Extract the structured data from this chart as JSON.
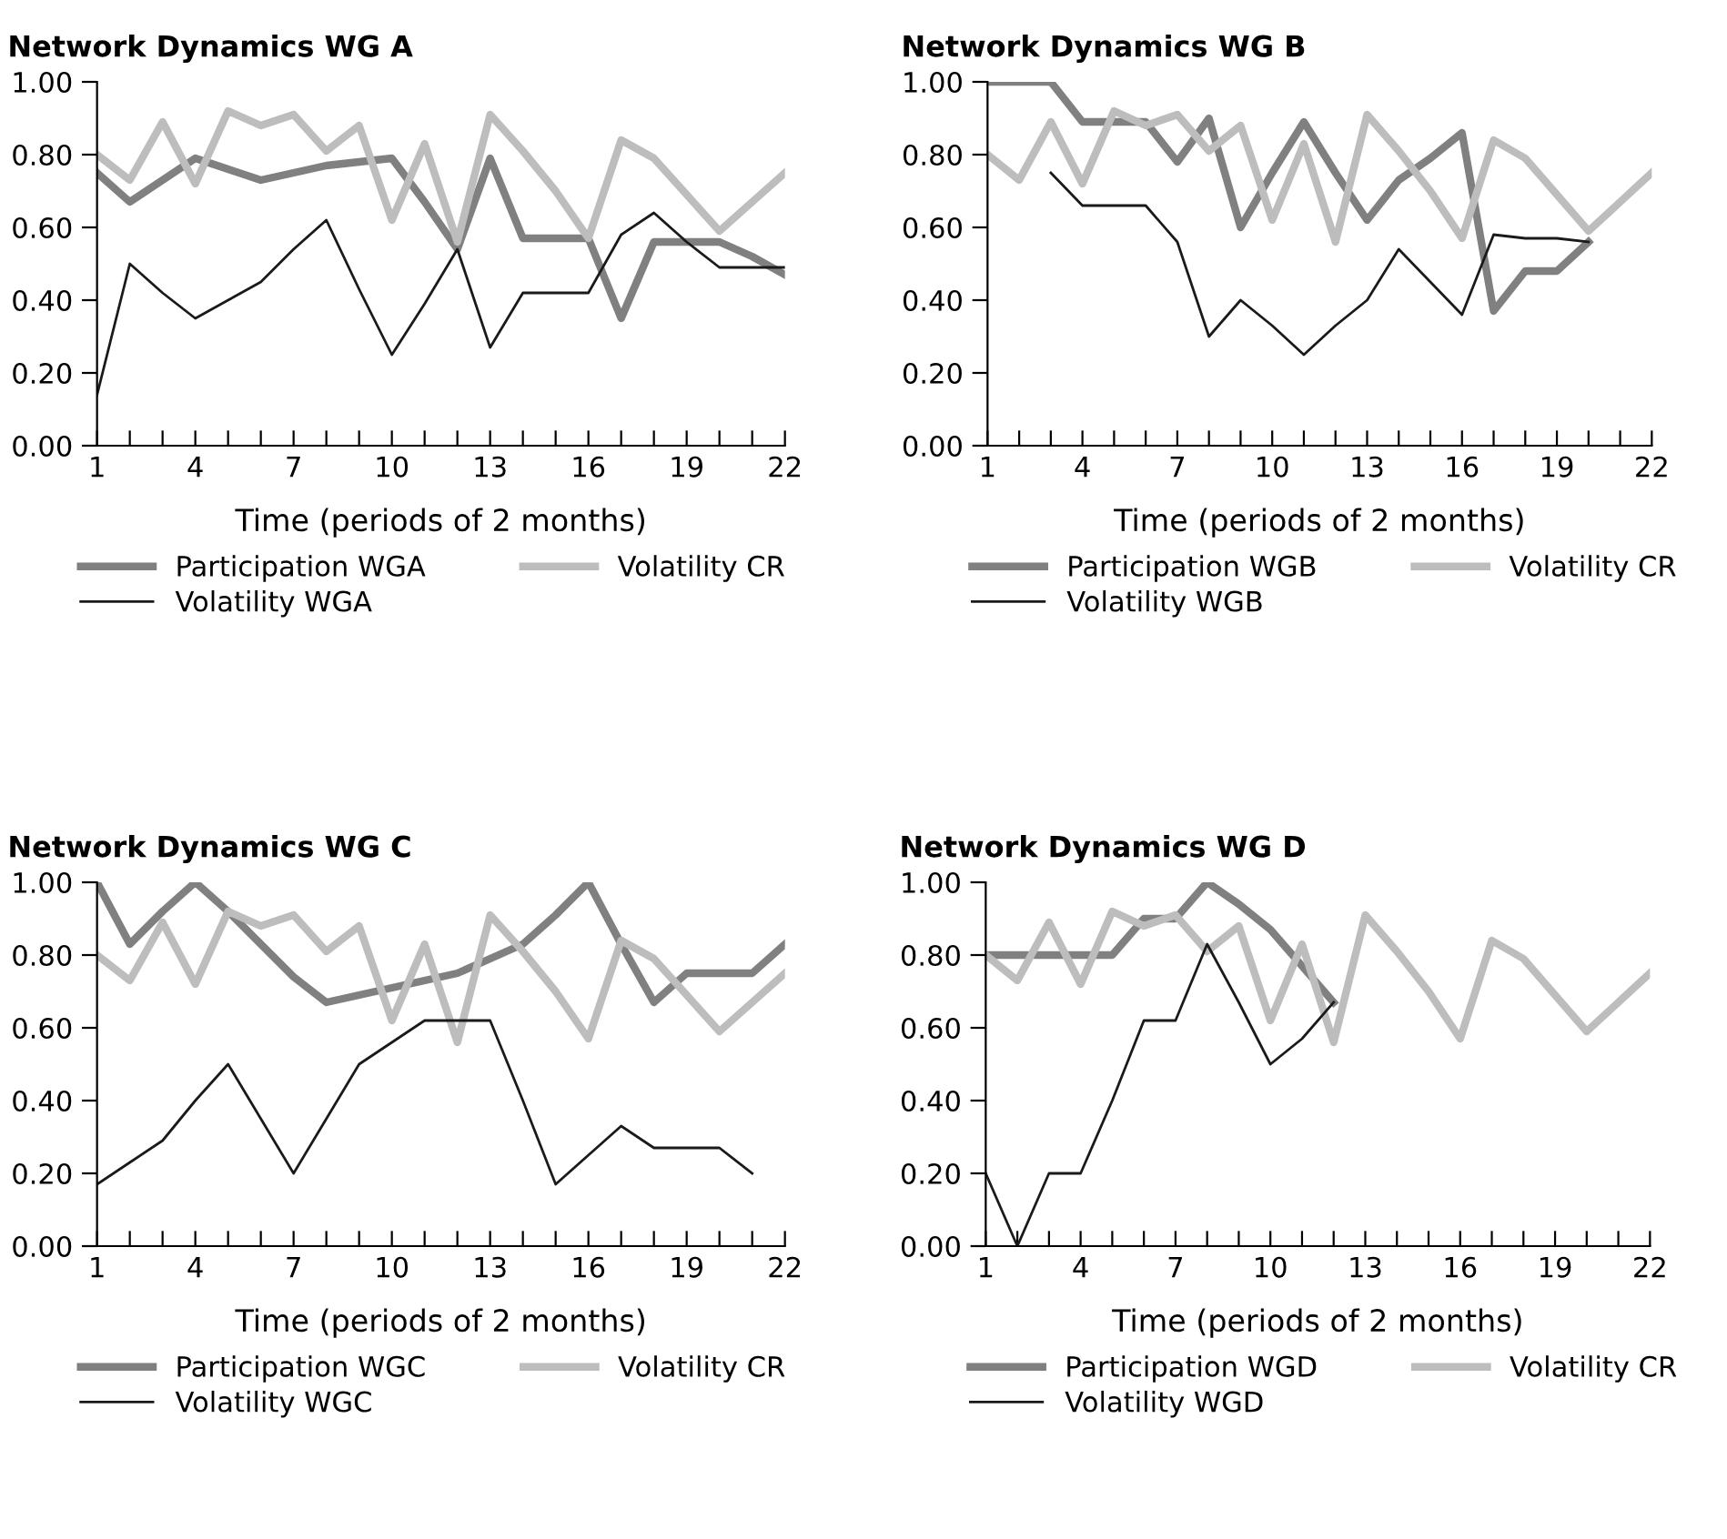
{
  "chart_data": [
    {
      "type": "line",
      "title": "Network Dynamics WG A",
      "xlabel": "Time (periods of 2 months)",
      "legend": "bottom",
      "grid": false,
      "x": [
        1,
        2,
        3,
        4,
        5,
        6,
        7,
        8,
        9,
        10,
        11,
        12,
        13,
        14,
        15,
        16,
        17,
        18,
        19,
        20,
        21,
        22
      ],
      "xlim": [
        1,
        22
      ],
      "xticks": [
        1,
        {
          "value": 2,
          "label": null
        },
        {
          "value": 3,
          "label": null
        },
        4,
        {
          "value": 5,
          "label": null
        },
        {
          "value": 6,
          "label": null
        },
        7,
        {
          "value": 8,
          "label": null
        },
        {
          "value": 9,
          "label": null
        },
        10,
        {
          "value": 11,
          "label": null
        },
        {
          "value": 12,
          "label": null
        },
        13,
        {
          "value": 14,
          "label": null
        },
        {
          "value": 15,
          "label": null
        },
        16,
        {
          "value": 17,
          "label": null
        },
        {
          "value": 18,
          "label": null
        },
        19,
        {
          "value": 20,
          "label": null
        },
        {
          "value": 21,
          "label": null
        },
        22
      ],
      "ylim": [
        0,
        1
      ],
      "yticks": [
        {
          "value": 0,
          "label": "0.00"
        },
        {
          "value": 0.2,
          "label": "0.20"
        },
        {
          "value": 0.4,
          "label": "0.40"
        },
        {
          "value": 0.6,
          "label": "0.60"
        },
        {
          "value": 0.8,
          "label": "0.80"
        },
        {
          "value": 1,
          "label": "1.00"
        }
      ],
      "series": [
        {
          "name": "Participation WGA",
          "color": "#808080",
          "values": [
            0.75,
            0.67,
            0.73,
            0.79,
            0.76,
            0.73,
            0.75,
            0.77,
            0.78,
            0.79,
            0.67,
            0.54,
            0.79,
            0.57,
            0.57,
            0.57,
            0.35,
            0.56,
            0.56,
            0.56,
            0.52,
            0.47
          ]
        },
        {
          "name": "Volatility CR",
          "color": "#bdbdbd",
          "values": [
            0.8,
            0.73,
            0.89,
            0.72,
            0.92,
            0.88,
            0.91,
            0.81,
            0.88,
            0.62,
            0.83,
            0.56,
            0.91,
            0.81,
            0.7,
            0.57,
            0.84,
            0.79,
            0.69,
            0.59,
            0.67,
            0.75
          ]
        },
        {
          "name": "Volatility WGA",
          "color": "#1a1a1a",
          "values": [
            0.14,
            0.5,
            0.42,
            0.35,
            0.4,
            0.45,
            0.54,
            0.62,
            0.43,
            0.25,
            0.39,
            0.54,
            0.27,
            0.42,
            0.42,
            0.42,
            0.58,
            0.64,
            0.56,
            0.49,
            0.49,
            0.49
          ]
        }
      ]
    },
    {
      "type": "line",
      "title": "Network Dynamics WG B",
      "xlabel": "Time (periods of 2 months)",
      "legend": "bottom",
      "grid": false,
      "x": [
        1,
        2,
        3,
        4,
        5,
        6,
        7,
        8,
        9,
        10,
        11,
        12,
        13,
        14,
        15,
        16,
        17,
        18,
        19,
        20,
        21,
        22
      ],
      "xlim": [
        1,
        22
      ],
      "xticks": [
        1,
        {
          "value": 2,
          "label": null
        },
        {
          "value": 3,
          "label": null
        },
        4,
        {
          "value": 5,
          "label": null
        },
        {
          "value": 6,
          "label": null
        },
        7,
        {
          "value": 8,
          "label": null
        },
        {
          "value": 9,
          "label": null
        },
        10,
        {
          "value": 11,
          "label": null
        },
        {
          "value": 12,
          "label": null
        },
        13,
        {
          "value": 14,
          "label": null
        },
        {
          "value": 15,
          "label": null
        },
        16,
        {
          "value": 17,
          "label": null
        },
        {
          "value": 18,
          "label": null
        },
        19,
        {
          "value": 20,
          "label": null
        },
        {
          "value": 21,
          "label": null
        },
        22
      ],
      "ylim": [
        0,
        1
      ],
      "yticks": [
        {
          "value": 0,
          "label": "0.00"
        },
        {
          "value": 0.2,
          "label": "0.20"
        },
        {
          "value": 0.4,
          "label": "0.40"
        },
        {
          "value": 0.6,
          "label": "0.60"
        },
        {
          "value": 0.8,
          "label": "0.80"
        },
        {
          "value": 1,
          "label": "1.00"
        }
      ],
      "series": [
        {
          "name": "Participation WGB",
          "color": "#808080",
          "values": [
            1.0,
            1.0,
            1.0,
            0.89,
            0.89,
            0.89,
            0.78,
            0.9,
            0.6,
            0.75,
            0.89,
            0.75,
            0.62,
            0.73,
            0.79,
            0.86,
            0.37,
            0.48,
            0.48,
            0.56,
            null,
            null
          ]
        },
        {
          "name": "Volatility CR",
          "color": "#bdbdbd",
          "values": [
            0.8,
            0.73,
            0.89,
            0.72,
            0.92,
            0.88,
            0.91,
            0.81,
            0.88,
            0.62,
            0.83,
            0.56,
            0.91,
            0.81,
            0.7,
            0.57,
            0.84,
            0.79,
            0.69,
            0.59,
            0.67,
            0.75
          ]
        },
        {
          "name": "Volatility WGB",
          "color": "#1a1a1a",
          "values": [
            null,
            null,
            0.75,
            0.66,
            0.66,
            0.66,
            0.56,
            0.3,
            0.4,
            0.33,
            0.25,
            0.33,
            0.4,
            0.54,
            0.45,
            0.36,
            0.58,
            0.57,
            0.57,
            0.56,
            null,
            null
          ]
        }
      ]
    },
    {
      "type": "line",
      "title": "Network Dynamics WG C",
      "xlabel": "Time (periods of 2 months)",
      "legend": "bottom",
      "grid": false,
      "x": [
        1,
        2,
        3,
        4,
        5,
        6,
        7,
        8,
        9,
        10,
        11,
        12,
        13,
        14,
        15,
        16,
        17,
        18,
        19,
        20,
        21,
        22
      ],
      "xlim": [
        1,
        22
      ],
      "xticks": [
        1,
        {
          "value": 2,
          "label": null
        },
        {
          "value": 3,
          "label": null
        },
        4,
        {
          "value": 5,
          "label": null
        },
        {
          "value": 6,
          "label": null
        },
        7,
        {
          "value": 8,
          "label": null
        },
        {
          "value": 9,
          "label": null
        },
        10,
        {
          "value": 11,
          "label": null
        },
        {
          "value": 12,
          "label": null
        },
        13,
        {
          "value": 14,
          "label": null
        },
        {
          "value": 15,
          "label": null
        },
        16,
        {
          "value": 17,
          "label": null
        },
        {
          "value": 18,
          "label": null
        },
        19,
        {
          "value": 20,
          "label": null
        },
        {
          "value": 21,
          "label": null
        },
        22
      ],
      "ylim": [
        0,
        1
      ],
      "yticks": [
        {
          "value": 0,
          "label": "0.00"
        },
        {
          "value": 0.2,
          "label": "0.20"
        },
        {
          "value": 0.4,
          "label": "0.40"
        },
        {
          "value": 0.6,
          "label": "0.60"
        },
        {
          "value": 0.8,
          "label": "0.80"
        },
        {
          "value": 1,
          "label": "1.00"
        }
      ],
      "series": [
        {
          "name": "Participation WGC",
          "color": "#808080",
          "values": [
            1.0,
            0.83,
            0.92,
            1.0,
            0.92,
            0.83,
            0.74,
            0.67,
            0.69,
            0.71,
            0.73,
            0.75,
            0.79,
            0.83,
            0.91,
            1.0,
            0.83,
            0.67,
            0.75,
            0.75,
            0.75,
            0.83
          ]
        },
        {
          "name": "Volatility CR",
          "color": "#bdbdbd",
          "values": [
            0.8,
            0.73,
            0.89,
            0.72,
            0.92,
            0.88,
            0.91,
            0.81,
            0.88,
            0.62,
            0.83,
            0.56,
            0.91,
            0.81,
            0.7,
            0.57,
            0.84,
            0.79,
            0.69,
            0.59,
            0.67,
            0.75
          ]
        },
        {
          "name": "Volatility WGC",
          "color": "#1a1a1a",
          "values": [
            0.17,
            0.23,
            0.29,
            0.4,
            0.5,
            0.35,
            0.2,
            0.35,
            0.5,
            0.56,
            0.62,
            0.62,
            0.62,
            0.4,
            0.17,
            0.25,
            0.33,
            0.27,
            0.27,
            0.27,
            0.2,
            null
          ]
        }
      ]
    },
    {
      "type": "line",
      "title": "Network Dynamics WG D",
      "xlabel": "Time (periods of 2 months)",
      "legend": "bottom",
      "grid": false,
      "x": [
        1,
        2,
        3,
        4,
        5,
        6,
        7,
        8,
        9,
        10,
        11,
        12,
        13,
        14,
        15,
        16,
        17,
        18,
        19,
        20,
        21,
        22
      ],
      "xlim": [
        1,
        22
      ],
      "xticks": [
        1,
        {
          "value": 2,
          "label": null
        },
        {
          "value": 3,
          "label": null
        },
        4,
        {
          "value": 5,
          "label": null
        },
        {
          "value": 6,
          "label": null
        },
        7,
        {
          "value": 8,
          "label": null
        },
        {
          "value": 9,
          "label": null
        },
        10,
        {
          "value": 11,
          "label": null
        },
        {
          "value": 12,
          "label": null
        },
        13,
        {
          "value": 14,
          "label": null
        },
        {
          "value": 15,
          "label": null
        },
        16,
        {
          "value": 17,
          "label": null
        },
        {
          "value": 18,
          "label": null
        },
        19,
        {
          "value": 20,
          "label": null
        },
        {
          "value": 21,
          "label": null
        },
        22
      ],
      "ylim": [
        0,
        1
      ],
      "yticks": [
        {
          "value": 0,
          "label": "0.00"
        },
        {
          "value": 0.2,
          "label": "0.20"
        },
        {
          "value": 0.4,
          "label": "0.40"
        },
        {
          "value": 0.6,
          "label": "0.60"
        },
        {
          "value": 0.8,
          "label": "0.80"
        },
        {
          "value": 1,
          "label": "1.00"
        }
      ],
      "series": [
        {
          "name": "Participation WGD",
          "color": "#808080",
          "values": [
            0.8,
            0.8,
            0.8,
            0.8,
            0.8,
            0.9,
            0.9,
            1.0,
            0.94,
            0.87,
            0.77,
            0.67,
            null,
            null,
            null,
            null,
            null,
            null,
            null,
            null,
            null,
            null
          ]
        },
        {
          "name": "Volatility CR",
          "color": "#bdbdbd",
          "values": [
            0.8,
            0.73,
            0.89,
            0.72,
            0.92,
            0.88,
            0.91,
            0.81,
            0.88,
            0.62,
            0.83,
            0.56,
            0.91,
            0.81,
            0.7,
            0.57,
            0.84,
            0.79,
            0.69,
            0.59,
            0.67,
            0.75
          ]
        },
        {
          "name": "Volatility WGD",
          "color": "#1a1a1a",
          "values": [
            0.2,
            0.0,
            0.2,
            0.2,
            0.4,
            0.62,
            0.62,
            0.83,
            0.67,
            0.5,
            0.57,
            0.67,
            null,
            null,
            null,
            null,
            null,
            null,
            null,
            null,
            null,
            null
          ]
        }
      ]
    }
  ]
}
